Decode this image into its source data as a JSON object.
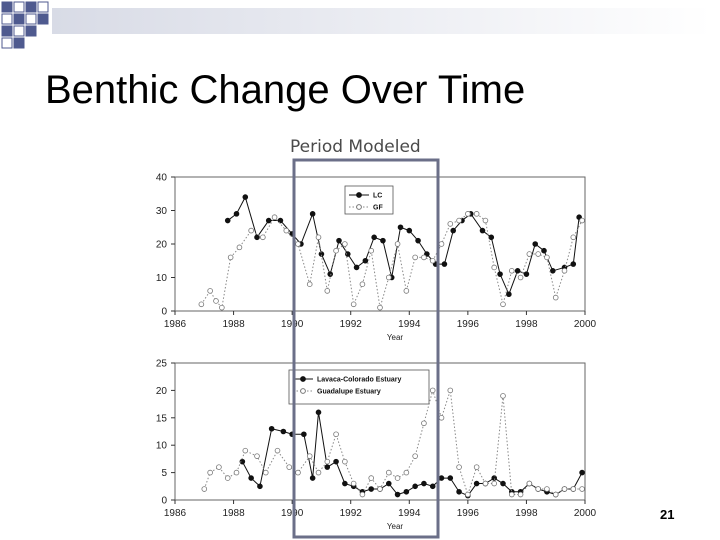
{
  "slide": {
    "title": "Benthic Change Over Time",
    "period_label": "Period Modeled",
    "slide_number": "21"
  },
  "colors": {
    "square_dark": "#4f5a8f",
    "square_light": "#ffffff",
    "frame": "#6b6f88",
    "header_bar": "#d8dbe6"
  },
  "chart_data": [
    {
      "type": "line",
      "title": "",
      "xlabel": "Year",
      "ylabel": "",
      "xlim": [
        1986,
        2000
      ],
      "ylim": [
        0,
        40
      ],
      "xticks": [
        "1986",
        "1988",
        "1990",
        "1992",
        "1994",
        "1996",
        "1998",
        "2000"
      ],
      "yticks": [
        "0",
        "10",
        "20",
        "30",
        "40"
      ],
      "legend_position": "top",
      "series": [
        {
          "name": "LC",
          "style": "solid-filled",
          "x": [
            1987.8,
            1988.1,
            1988.4,
            1988.8,
            1989.2,
            1989.6,
            1990.0,
            1990.3,
            1990.7,
            1991.0,
            1991.3,
            1991.6,
            1991.9,
            1992.2,
            1992.5,
            1992.8,
            1993.1,
            1993.4,
            1993.7,
            1994.0,
            1994.3,
            1994.6,
            1994.9,
            1995.2,
            1995.5,
            1995.8,
            1996.1,
            1996.5,
            1996.8,
            1997.1,
            1997.4,
            1997.7,
            1998.0,
            1998.3,
            1998.6,
            1998.9,
            1999.3,
            1999.6,
            1999.8
          ],
          "y": [
            27,
            29,
            34,
            22,
            27,
            27,
            23,
            20,
            29,
            17,
            11,
            21,
            17,
            13,
            15,
            22,
            21,
            10,
            25,
            24,
            21,
            17,
            14,
            14,
            24,
            27,
            29,
            24,
            22,
            11,
            5,
            12,
            11,
            20,
            18,
            12,
            13,
            14,
            28
          ]
        },
        {
          "name": "GF",
          "style": "dotted-open",
          "x": [
            1986.9,
            1987.2,
            1987.4,
            1987.6,
            1987.9,
            1988.2,
            1988.6,
            1989.0,
            1989.4,
            1989.8,
            1990.2,
            1990.6,
            1990.9,
            1991.2,
            1991.5,
            1991.8,
            1992.1,
            1992.4,
            1992.7,
            1993.0,
            1993.3,
            1993.6,
            1993.9,
            1994.2,
            1994.5,
            1994.8,
            1995.1,
            1995.4,
            1995.7,
            1996.0,
            1996.3,
            1996.6,
            1996.9,
            1997.2,
            1997.5,
            1997.8,
            1998.1,
            1998.4,
            1998.7,
            1999.0,
            1999.3,
            1999.6,
            1999.9
          ],
          "y": [
            2,
            6,
            3,
            1,
            16,
            19,
            24,
            22,
            28,
            24,
            20,
            8,
            22,
            6,
            18,
            20,
            2,
            8,
            18,
            1,
            10,
            20,
            6,
            16,
            16,
            15,
            20,
            26,
            27,
            29,
            29,
            27,
            13,
            2,
            12,
            10,
            17,
            17,
            16,
            4,
            12,
            22,
            27
          ]
        }
      ]
    },
    {
      "type": "line",
      "title": "",
      "xlabel": "Year",
      "ylabel": "",
      "xlim": [
        1986,
        2000
      ],
      "ylim": [
        0,
        25
      ],
      "xticks": [
        "1986",
        "1988",
        "1990",
        "1992",
        "1994",
        "1996",
        "1998",
        "2000"
      ],
      "yticks": [
        "0",
        "5",
        "10",
        "15",
        "20",
        "25"
      ],
      "legend_position": "top-left",
      "series": [
        {
          "name": "Lavaca-Colorado Estuary",
          "style": "solid-filled",
          "x": [
            1988.3,
            1988.6,
            1988.9,
            1989.3,
            1989.7,
            1990.0,
            1990.4,
            1990.7,
            1990.9,
            1991.2,
            1991.5,
            1991.8,
            1992.1,
            1992.4,
            1992.7,
            1993.0,
            1993.3,
            1993.6,
            1993.9,
            1994.2,
            1994.5,
            1994.8,
            1995.1,
            1995.4,
            1995.7,
            1996.0,
            1996.3,
            1996.6,
            1996.9,
            1997.2,
            1997.5,
            1997.8,
            1998.1,
            1998.4,
            1998.7,
            1999.0,
            1999.3,
            1999.6,
            1999.9
          ],
          "y": [
            7,
            4,
            2.5,
            13,
            12.5,
            12,
            12,
            4,
            16,
            6,
            7,
            3,
            2.5,
            1.5,
            2,
            2,
            3,
            1,
            1.5,
            2.5,
            3,
            2.5,
            4,
            4,
            1.5,
            0.8,
            3,
            3,
            4,
            3,
            1.5,
            1.5,
            3,
            2,
            1.5,
            1,
            2,
            2,
            5
          ]
        },
        {
          "name": "Guadalupe Estuary",
          "style": "dotted-open",
          "x": [
            1987.0,
            1987.2,
            1987.5,
            1987.8,
            1988.1,
            1988.4,
            1988.8,
            1989.1,
            1989.5,
            1989.9,
            1990.2,
            1990.6,
            1990.9,
            1991.2,
            1991.5,
            1991.8,
            1992.1,
            1992.4,
            1992.7,
            1993.0,
            1993.3,
            1993.6,
            1993.9,
            1994.2,
            1994.5,
            1994.8,
            1995.1,
            1995.4,
            1995.7,
            1996.0,
            1996.3,
            1996.6,
            1996.9,
            1997.2,
            1997.5,
            1997.8,
            1998.1,
            1998.4,
            1998.7,
            1999.0,
            1999.3,
            1999.6,
            1999.9
          ],
          "y": [
            2,
            5,
            6,
            4,
            5,
            9,
            8,
            5,
            9,
            6,
            5,
            8,
            5,
            7,
            12,
            7,
            3,
            1,
            4,
            2,
            5,
            4,
            5,
            8,
            14,
            20,
            15,
            20,
            6,
            1,
            6,
            3,
            3,
            19,
            1,
            1,
            3,
            2,
            2,
            1,
            2,
            2,
            2
          ]
        }
      ]
    }
  ]
}
